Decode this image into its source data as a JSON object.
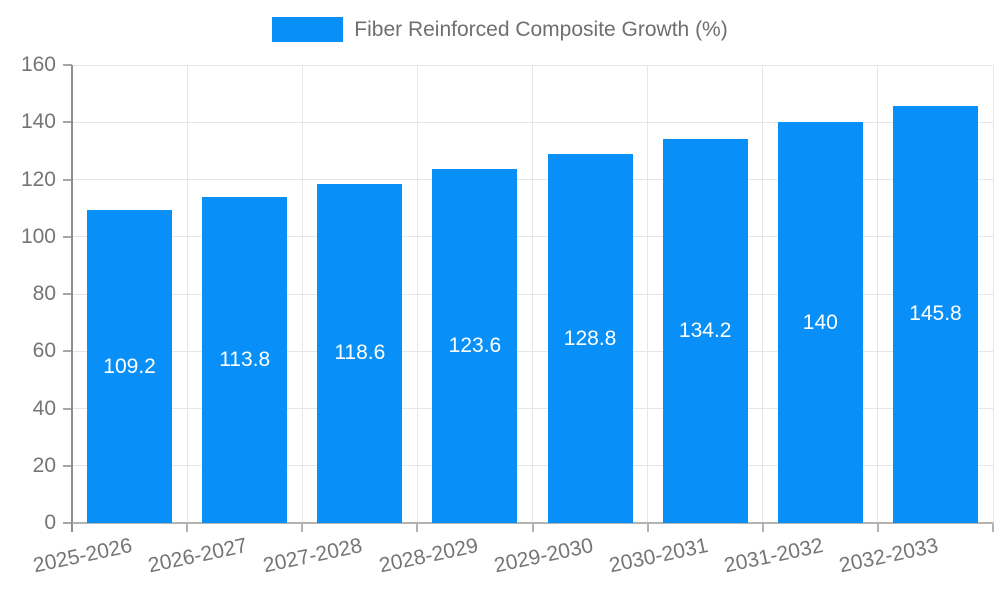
{
  "chart_data": {
    "type": "bar",
    "title": "",
    "legend": {
      "label": "Fiber Reinforced Composite Growth (%)",
      "position": "top"
    },
    "categories": [
      "2025-2026",
      "2026-2027",
      "2027-2028",
      "2028-2029",
      "2029-2030",
      "2030-2031",
      "2031-2032",
      "2032-2033"
    ],
    "series": [
      {
        "name": "Fiber Reinforced Composite Growth (%)",
        "values": [
          109.2,
          113.8,
          118.6,
          123.6,
          128.8,
          134.2,
          140,
          145.8
        ]
      }
    ],
    "xlabel": "",
    "ylabel": "",
    "ylim": [
      0,
      160
    ],
    "yticks": [
      0,
      20,
      40,
      60,
      80,
      100,
      120,
      140,
      160
    ],
    "grid": true,
    "value_labels": "inside-center",
    "colors": {
      "bar": "#0890f8",
      "bar_value_text": "#ffffff",
      "axis_text": "#757575",
      "legend_text": "#6f6f6f",
      "gridline": "#e6e6e6",
      "axis_line_x": "#b3b3b3",
      "axis_line_y": "#8f8f8f",
      "tick": "#a6a6a6",
      "background": "#ffffff"
    }
  }
}
